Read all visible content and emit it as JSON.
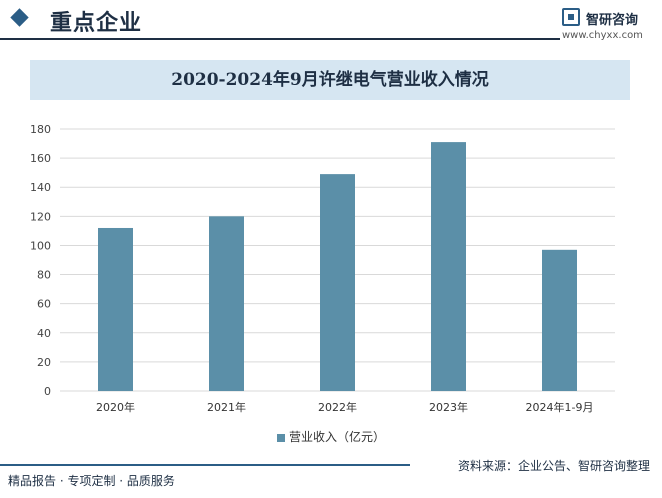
{
  "header": {
    "section_title": "重点企业",
    "brand_name": "智研咨询",
    "brand_url": "www.chyxx.com"
  },
  "colors": {
    "bar": "#5b8fa8",
    "accent": "#2b5d86",
    "title_band": "#d6e6f2"
  },
  "chart_data": {
    "type": "bar",
    "title": "2020-2024年9月许继电气营业收入情况",
    "categories": [
      "2020年",
      "2021年",
      "2022年",
      "2023年",
      "2024年1-9月"
    ],
    "series": [
      {
        "name": "营业收入（亿元）",
        "values": [
          112,
          120,
          149,
          171,
          97
        ]
      }
    ],
    "ylim": [
      0,
      180
    ],
    "yticks": [
      0,
      20,
      40,
      60,
      80,
      100,
      120,
      140,
      160,
      180
    ],
    "grid": true,
    "legend": "bottom"
  },
  "footer": {
    "source": "资料来源：企业公告、智研咨询整理",
    "slogan": "精品报告 · 专项定制 · 品质服务"
  }
}
